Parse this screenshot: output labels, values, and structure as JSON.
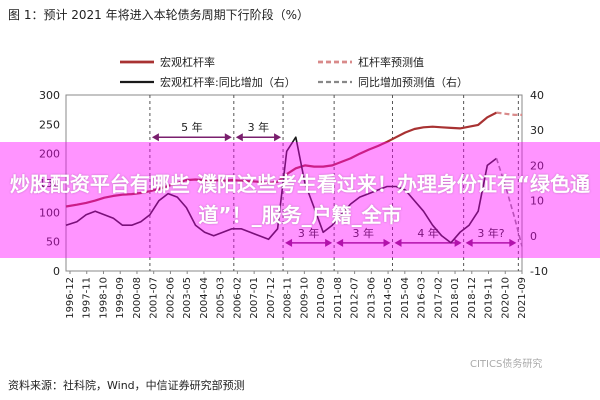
{
  "title": "图 1：预计 2021 年将进入本轮债务周期下行阶段（%）",
  "source": "资料来源：社科院，Wind，中信证券研究部预测",
  "watermark": "CITICS债务研究",
  "overlay_text": "炒股配资平台有哪些 濮阳这些考生看过来！办理身份证有“绿色通道”！_服务_户籍_全市",
  "colors": {
    "leverage": "#a83232",
    "leverage_forecast": "#d98a8a",
    "yoy": "#1a1a1a",
    "yoy_forecast": "#888888",
    "annotation": "#7a1f6e"
  },
  "chart_data": {
    "type": "line",
    "legend": {
      "placement": "top",
      "entries": [
        "宏观杠杆率",
        "杠杆率预测值",
        "宏观杠杆率:同比增加（右）",
        "同比增加预测值（右）"
      ]
    },
    "y_left": {
      "ticks": [
        "300",
        "250",
        "200",
        "150",
        "100",
        "50",
        "0"
      ],
      "range": [
        0,
        300
      ]
    },
    "y_right": {
      "ticks": [
        "40",
        "30",
        "20",
        "10",
        "0",
        "-10"
      ],
      "range": [
        -10,
        40
      ]
    },
    "x_ticks": [
      "1996-12",
      "1997-11",
      "1998-10",
      "1999-09",
      "2000-08",
      "2001-07",
      "2002-06",
      "2003-05",
      "2004-04",
      "2005-03",
      "2006-02",
      "2007-01",
      "2007-12",
      "2008-11",
      "2009-10",
      "2010-09",
      "2011-08",
      "2012-07",
      "2013-06",
      "2014-05",
      "2015-04",
      "2016-03",
      "2017-02",
      "2018-01",
      "2018-12",
      "2019-11",
      "2020-10",
      "2021-09"
    ],
    "annotations": [
      {
        "text": "5 年",
        "from": 2001.5,
        "to": 2006.1,
        "level": 28
      },
      {
        "text": "3 年",
        "from": 2006.1,
        "to": 2008.8,
        "level": 28
      },
      {
        "text": "3 年",
        "from": 2008.8,
        "to": 2011.6,
        "level": -2
      },
      {
        "text": "3 年",
        "from": 2011.6,
        "to": 2014.8,
        "level": -2
      },
      {
        "text": "4 年",
        "from": 2014.8,
        "to": 2018.7,
        "level": -2
      },
      {
        "text": "3 年?",
        "from": 2018.7,
        "to": 2021.7,
        "level": -2
      }
    ],
    "series": [
      {
        "name": "宏观杠杆率",
        "axis": "left",
        "x": [
          1996.9,
          1997.5,
          1998.0,
          1998.5,
          1999.0,
          1999.5,
          2000.0,
          2000.5,
          2001.0,
          2001.5,
          2002.0,
          2002.5,
          2003.0,
          2003.5,
          2004.0,
          2004.5,
          2005.0,
          2005.5,
          2006.0,
          2006.5,
          2007.0,
          2007.5,
          2008.0,
          2008.5,
          2009.0,
          2009.5,
          2010.0,
          2010.5,
          2011.0,
          2011.5,
          2012.0,
          2012.5,
          2013.0,
          2013.5,
          2014.0,
          2014.5,
          2015.0,
          2015.5,
          2016.0,
          2016.5,
          2017.0,
          2017.5,
          2018.0,
          2018.5,
          2019.0,
          2019.5,
          2020.0,
          2020.5
        ],
        "y": [
          110,
          113,
          116,
          120,
          125,
          128,
          130,
          131,
          133,
          136,
          140,
          145,
          150,
          155,
          156,
          155,
          155,
          154,
          155,
          154,
          153,
          152,
          150,
          152,
          165,
          175,
          180,
          178,
          178,
          180,
          186,
          192,
          200,
          207,
          213,
          220,
          228,
          236,
          242,
          245,
          246,
          245,
          244,
          243,
          246,
          249,
          262,
          270
        ]
      },
      {
        "name": "杠杆率预测值",
        "axis": "left",
        "x": [
          2020.5,
          2021.0,
          2021.5,
          2021.9
        ],
        "y": [
          270,
          268,
          266,
          266
        ]
      },
      {
        "name": "宏观杠杆率:同比增加（右）",
        "axis": "right",
        "x": [
          1996.9,
          1997.5,
          1998.0,
          1998.5,
          1999.0,
          1999.5,
          2000.0,
          2000.5,
          2001.0,
          2001.5,
          2002.0,
          2002.5,
          2003.0,
          2003.5,
          2004.0,
          2004.5,
          2005.0,
          2005.5,
          2006.0,
          2006.5,
          2007.0,
          2007.5,
          2008.0,
          2008.5,
          2009.0,
          2009.5,
          2010.0,
          2010.5,
          2011.0,
          2011.5,
          2012.0,
          2012.5,
          2013.0,
          2013.5,
          2014.0,
          2014.5,
          2015.0,
          2015.5,
          2016.0,
          2016.5,
          2017.0,
          2017.5,
          2018.0,
          2018.5,
          2019.0,
          2019.5,
          2020.0,
          2020.5
        ],
        "y": [
          3,
          4,
          6,
          7,
          6,
          5,
          3,
          3,
          4,
          6,
          10,
          12,
          11,
          8,
          3,
          1,
          0,
          1,
          2,
          2,
          1,
          0,
          -1,
          2,
          24,
          28,
          15,
          8,
          1,
          3,
          6,
          9,
          11,
          12,
          13,
          14,
          14,
          13,
          10,
          7,
          3,
          0,
          -2,
          1,
          3,
          7,
          20,
          22
        ]
      },
      {
        "name": "同比增加预测值（右）",
        "axis": "right",
        "x": [
          2020.5,
          2021.0,
          2021.5,
          2021.9
        ],
        "y": [
          22,
          14,
          5,
          -3
        ]
      }
    ]
  }
}
